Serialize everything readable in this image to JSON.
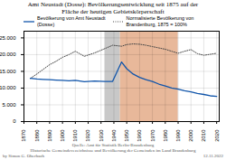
{
  "chart_data": {
    "type": "line",
    "title": "Amt Neustadt (Dosse): Bevölkerungsentwicklung seit 1875 auf der\nFläche der heutigen Gebietskörperschaft",
    "x": [
      1875,
      1880,
      1885,
      1890,
      1895,
      1900,
      1905,
      1910,
      1917,
      1925,
      1933,
      1939,
      1946,
      1950,
      1955,
      1960,
      1965,
      1970,
      1975,
      1980,
      1985,
      1990,
      1995,
      2000,
      2005,
      2010,
      2015,
      2020
    ],
    "series": [
      {
        "name": "Bevölkerung von Amt Neustadt\n(Dosse)",
        "color": "#1155aa",
        "line_style": "solid",
        "values": [
          12900,
          12700,
          12600,
          12500,
          12400,
          12300,
          12200,
          12300,
          11900,
          12100,
          12000,
          12000,
          17800,
          15800,
          14200,
          13200,
          12500,
          12000,
          11200,
          10600,
          10000,
          9700,
          9200,
          8900,
          8400,
          8100,
          7700,
          7500
        ]
      },
      {
        "name": "Normalisierte Bevölkerung von\nBrandenburg, 1875 = 100%",
        "color": "#444444",
        "line_style": "dotted",
        "values": [
          12900,
          14200,
          15600,
          17000,
          18000,
          19200,
          20000,
          21000,
          19500,
          20500,
          21800,
          22800,
          22500,
          23000,
          23200,
          23100,
          22800,
          22400,
          22000,
          21600,
          21000,
          20400,
          21000,
          21500,
          20300,
          19800,
          20100,
          20400
        ]
      }
    ],
    "spans": [
      {
        "start": 1933,
        "end": 1945,
        "color": "#c8c8c8"
      },
      {
        "start": 1945,
        "end": 1990,
        "color": "#e8b89a"
      }
    ],
    "xlim": [
      1870,
      2022
    ],
    "xticks": [
      1870,
      1880,
      1890,
      1900,
      1910,
      1920,
      1930,
      1940,
      1950,
      1960,
      1970,
      1980,
      1990,
      2000,
      2010,
      2020
    ],
    "ylim": [
      0,
      27000
    ],
    "yticks": [
      0,
      {
        "value": 5000,
        "label": "5.000"
      },
      {
        "value": 10000,
        "label": "10.000"
      },
      {
        "value": 15000,
        "label": "15.000"
      },
      {
        "value": 20000,
        "label": "20.000"
      },
      {
        "value": 25000,
        "label": "25.000"
      }
    ],
    "grid": true,
    "legend": "upper left",
    "annotations": [
      "Quelle: Amt für Statistik Berlin-Brandenburg",
      "Historische Gemeindevezeichnisse und Bevölkerung der Gemeinden im Land Brandenburg",
      "by Simon G. Oberbach",
      "12.11.2022"
    ]
  }
}
